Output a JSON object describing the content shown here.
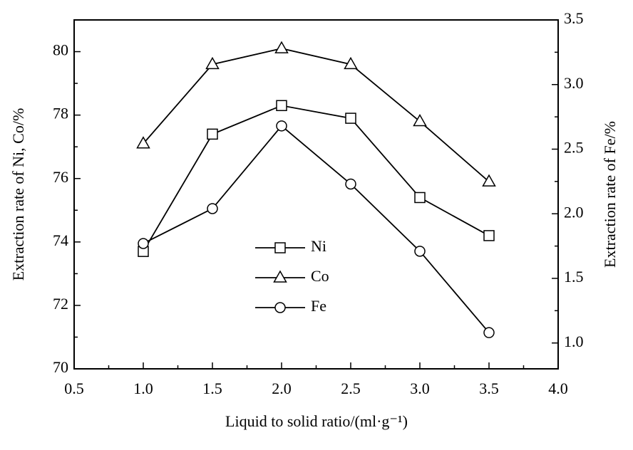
{
  "chart_data": {
    "type": "line",
    "x_label": "Liquid to solid ratio/(ml·g⁻¹)",
    "y_label": "Extraction rate of Ni, Co/%",
    "y2_label": "Extraction rate of Fe/%",
    "x": [
      1.0,
      1.5,
      2.0,
      2.5,
      3.0,
      3.5
    ],
    "series": [
      {
        "name": "Ni",
        "color": "#000000",
        "marker": "square",
        "values": [
          73.7,
          77.4,
          78.3,
          77.9,
          75.4,
          74.2
        ]
      },
      {
        "name": "Co",
        "color": "#000000",
        "marker": "triangle",
        "values": [
          77.1,
          79.6,
          80.1,
          79.6,
          77.8,
          75.9
        ]
      },
      {
        "name": "Fe",
        "color": "#000000",
        "marker": "circle",
        "axis": "y2",
        "values": [
          1.77,
          2.04,
          2.68,
          2.23,
          1.71,
          1.08
        ]
      }
    ],
    "xlim": [
      0.5,
      4.0
    ],
    "xticks": [
      0.5,
      {
        "value": 1,
        "label": "1.0"
      },
      1.5,
      {
        "value": 2,
        "label": "2.0"
      },
      2.5,
      {
        "value": 3,
        "label": "3.0"
      },
      3.5,
      {
        "value": 4,
        "label": "4.0"
      }
    ],
    "ylim": [
      70,
      81
    ],
    "yticks": [
      70,
      72,
      74,
      76,
      78,
      80
    ],
    "y2lim": [
      0.8,
      3.5
    ],
    "y2ticks": [
      {
        "value": 1,
        "label": "1.0"
      },
      1.5,
      {
        "value": 2,
        "label": "2.0"
      },
      2.5,
      {
        "value": 3,
        "label": "3.0"
      },
      3.5
    ],
    "grid": false
  }
}
